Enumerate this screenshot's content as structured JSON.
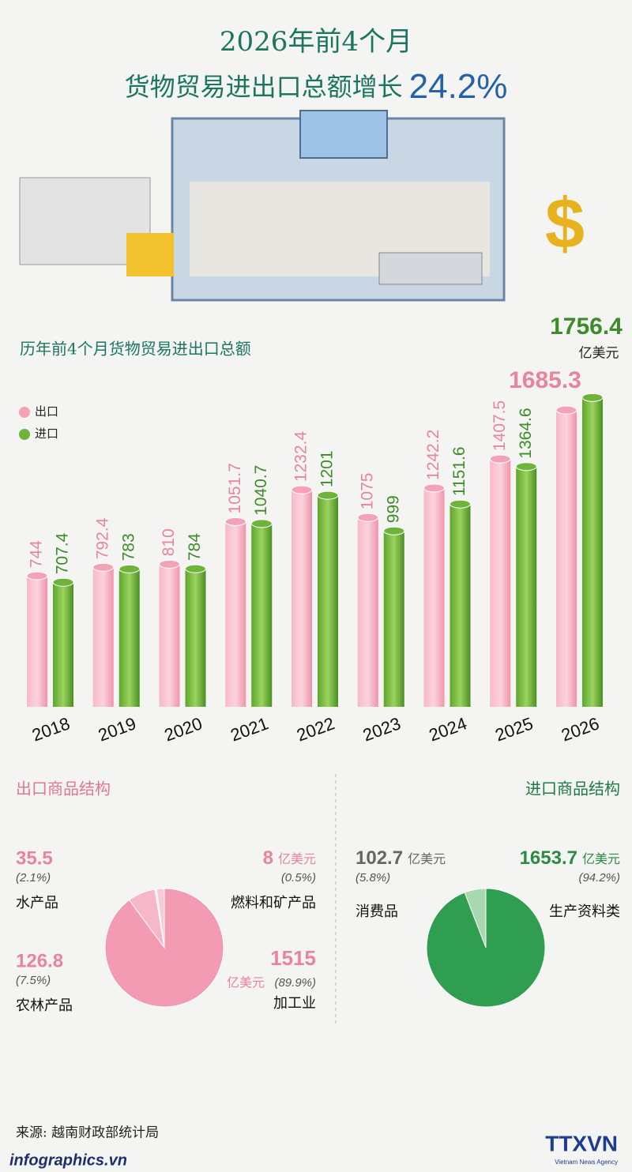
{
  "header": {
    "line1": "2026年前4个月",
    "line2": "货物贸易进出口总额增长",
    "growth": "24.2%"
  },
  "chart_data": [
    {
      "type": "bar",
      "title": "历年前4个月货物贸易进出口总额",
      "categories": [
        "2018",
        "2019",
        "2020",
        "2021",
        "2022",
        "2023",
        "2024",
        "2025",
        "2026"
      ],
      "series": [
        {
          "name": "出口",
          "color": "#f4a3b6",
          "values": [
            744,
            792.4,
            810,
            1051.7,
            1232.4,
            1075,
            1242.2,
            1407.5,
            1685.3
          ]
        },
        {
          "name": "进口",
          "color": "#6fb43a",
          "values": [
            707.4,
            783,
            784,
            1040.7,
            1201,
            999,
            1151.6,
            1364.6,
            1756.4
          ]
        }
      ],
      "unit": "亿美元"
    },
    {
      "type": "pie",
      "title": "出口商品结构",
      "unit": "亿美元",
      "categories": [
        "水产品",
        "燃料和矿产品",
        "农林产品",
        "加工业"
      ],
      "values": [
        35.5,
        8,
        126.8,
        1515
      ],
      "share_labels": [
        "(2.1%)",
        "(0.5%)",
        "(7.5%)",
        "(89.9%)"
      ],
      "colors": [
        "#f9cbd7",
        "#fde3ea",
        "#f6b7c8",
        "#f29bb3"
      ]
    },
    {
      "type": "pie",
      "title": "进口商品结构",
      "unit": "亿美元",
      "categories": [
        "消费品",
        "生产资料类"
      ],
      "values": [
        102.7,
        1653.7
      ],
      "share_labels": [
        "(5.8%)",
        "(94.2%)"
      ],
      "colors": [
        "#a8d8b0",
        "#2f9e50"
      ]
    }
  ],
  "source": "来源: 越南财政部统计局",
  "footer": {
    "site": "infographics.vn",
    "agency": "TTXVN",
    "agency_en": "Vietnam News Agency"
  }
}
